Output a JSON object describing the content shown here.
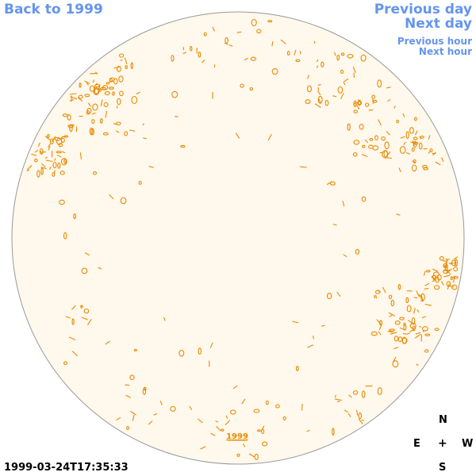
{
  "navigation": {
    "back_label": "Back to 1999",
    "prev_day_label": "Previous day",
    "next_day_label": "Next day",
    "prev_hour_label": "Previous hour",
    "next_hour_label": "Next hour"
  },
  "disk": {
    "year_label": "1999"
  },
  "compass": {
    "north": "N",
    "east": "E",
    "west": "W",
    "south": "S",
    "center": "+"
  },
  "timestamp": "1999-03-24T17:35:33",
  "colors": {
    "link": "#6495ED",
    "disk_fill": "#FFF8EC",
    "disk_border": "#999999",
    "contour": "#E88A00",
    "text": "#000000"
  }
}
